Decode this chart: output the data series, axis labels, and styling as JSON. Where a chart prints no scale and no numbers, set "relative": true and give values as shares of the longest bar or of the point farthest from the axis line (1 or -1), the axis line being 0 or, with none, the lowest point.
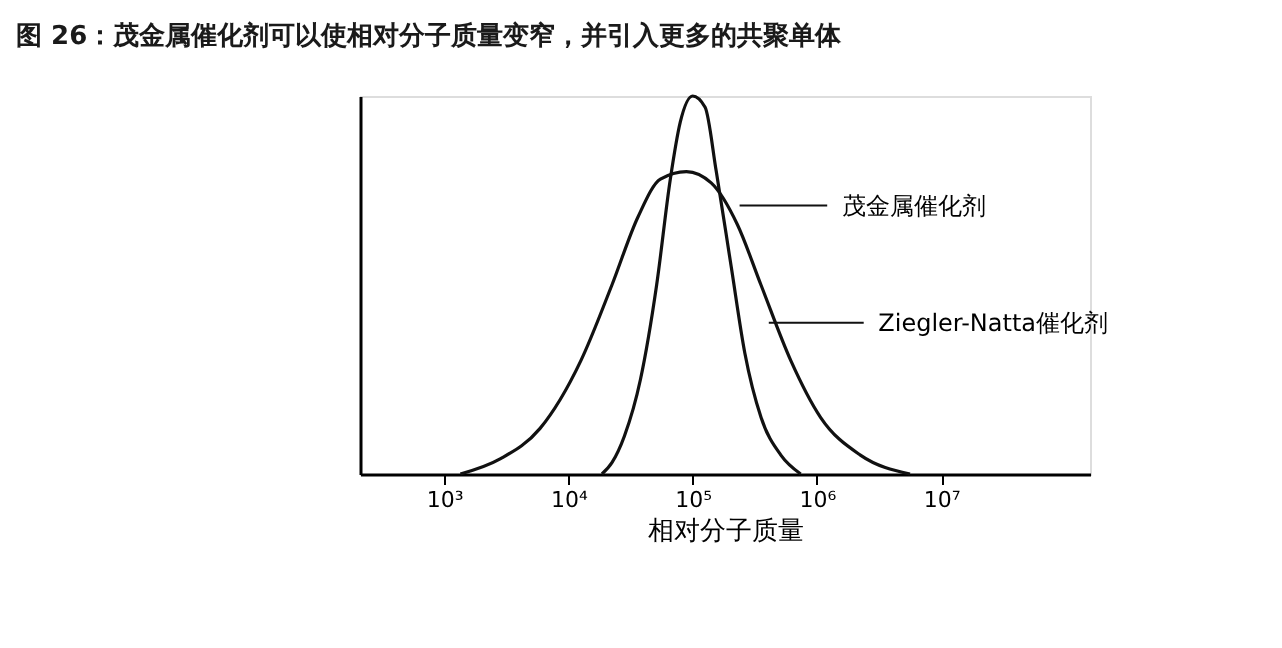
{
  "chart_data": {
    "type": "line",
    "title": "图 26：茂金属催化剂可以使相对分子质量变窄，并引入更多的共聚单体",
    "xlabel": "相对分子质量",
    "relative": true,
    "log": "x",
    "legend": "right",
    "grid": false,
    "marker": "none",
    "line_style": "solid",
    "xlim": [
      210,
      158000000
    ],
    "xticks": [
      {
        "value": 1000,
        "label": "10³"
      },
      {
        "value": 10000,
        "label": "10⁴"
      },
      {
        "value": 100000,
        "label": "10⁵"
      },
      {
        "value": 1000000,
        "label": "10⁶"
      },
      {
        "value": 10000000,
        "label": "10⁷"
      }
    ],
    "series": [
      {
        "name": "茂金属催化剂",
        "color": "#111111",
        "x": [
          18600,
          22400,
          28200,
          38000,
          51300,
          66100,
          79400,
          100000,
          126000,
          155000,
          204000,
          263000,
          355000,
          513000,
          741000
        ],
        "values": [
          0,
          0.03,
          0.1,
          0.25,
          0.5,
          0.78,
          0.93,
          1,
          0.97,
          0.8,
          0.55,
          0.32,
          0.15,
          0.05,
          0
        ]
      },
      {
        "name": "Ziegler-Natta催化剂",
        "color": "#111111",
        "x": [
          1350,
          2820,
          5890,
          12600,
          22400,
          36300,
          55000,
          89100,
          141000,
          229000,
          355000,
          617000,
          1070000,
          2240000,
          5620000
        ],
        "values": [
          0,
          0.04,
          0.12,
          0.3,
          0.5,
          0.68,
          0.78,
          0.8,
          0.77,
          0.66,
          0.5,
          0.3,
          0.15,
          0.05,
          0
        ]
      }
    ]
  }
}
